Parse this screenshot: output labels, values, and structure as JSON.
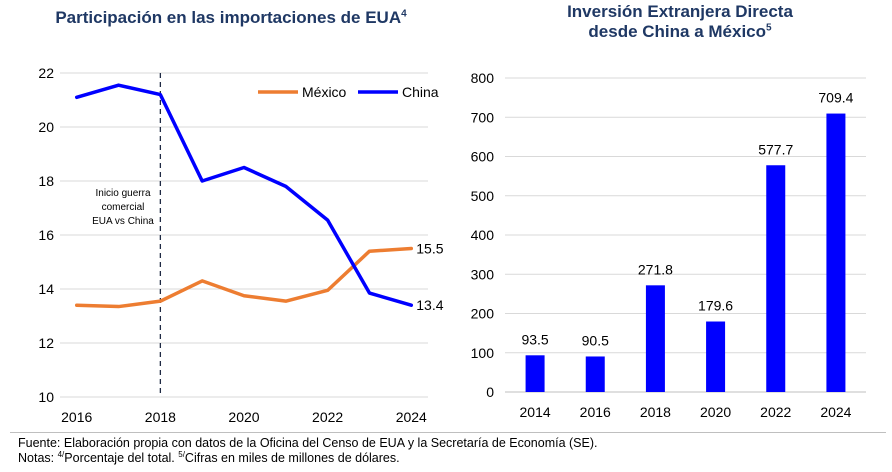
{
  "footer": {
    "source": "Fuente: Elaboración propia con datos de la Oficina del Censo de EUA y la Secretaría de Economía (SE).",
    "notes_prefix": "Notas: ",
    "note4_sup": "4/",
    "note4_text": "Porcentaje del total. ",
    "note5_sup": "5/",
    "note5_text": "Cifras en miles de millones de dólares."
  },
  "chart_data": [
    {
      "type": "line",
      "title": "Participación en las importaciones de EUA",
      "title_sup": "4",
      "x": [
        2016,
        2017,
        2018,
        2019,
        2020,
        2021,
        2022,
        2023,
        2024
      ],
      "x_ticks": [
        "2016",
        "2018",
        "2020",
        "2022",
        "2024"
      ],
      "y_ticks": [
        "10",
        "12",
        "14",
        "16",
        "18",
        "20",
        "22"
      ],
      "ylim": [
        10,
        22
      ],
      "grid": true,
      "legend_position": "top-right",
      "series": [
        {
          "name": "México",
          "color": "#ed7d31",
          "values": [
            13.4,
            13.35,
            13.55,
            14.3,
            13.75,
            13.55,
            13.95,
            15.4,
            15.5
          ],
          "end_label": "15.5"
        },
        {
          "name": "China",
          "color": "#0000ff",
          "values": [
            21.1,
            21.55,
            21.2,
            18.0,
            18.5,
            17.8,
            16.55,
            13.85,
            13.4
          ],
          "end_label": "13.4"
        }
      ],
      "annotation": {
        "x": 2018,
        "lines": [
          "Inicio guerra",
          "comercial",
          "EUA vs China"
        ]
      }
    },
    {
      "type": "bar",
      "title_line1": "Inversión Extranjera Directa",
      "title_line2": "desde China a México",
      "title_sup": "5",
      "categories": [
        "2014",
        "2016",
        "2018",
        "2020",
        "2022",
        "2024"
      ],
      "values": [
        93.5,
        90.5,
        271.8,
        179.6,
        577.7,
        709.4
      ],
      "labels": [
        "93.5",
        "90.5",
        "271.8",
        "179.6",
        "577.7",
        "709.4"
      ],
      "y_ticks": [
        "0",
        "100",
        "200",
        "300",
        "400",
        "500",
        "600",
        "700",
        "800"
      ],
      "ylim": [
        0,
        800
      ],
      "grid": true,
      "color": "#0000ff"
    }
  ]
}
